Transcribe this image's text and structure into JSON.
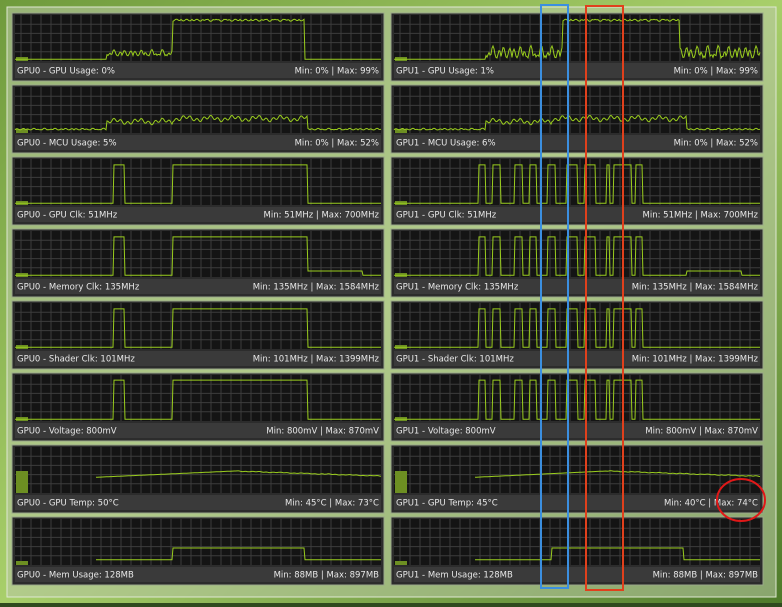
{
  "panels": [
    {
      "label": "GPU0 - GPU Usage: 0%",
      "range": "Min: 0% | Max: 99%"
    },
    {
      "label": "GPU1 - GPU Usage: 1%",
      "range": "Min: 0% | Max: 99%"
    },
    {
      "label": "GPU0 - MCU Usage: 5%",
      "range": "Min: 0% | Max: 52%"
    },
    {
      "label": "GPU1 - MCU Usage: 6%",
      "range": "Min: 0% | Max: 52%"
    },
    {
      "label": "GPU0 - GPU Clk: 51MHz",
      "range": "Min: 51MHz | Max: 700MHz"
    },
    {
      "label": "GPU1 - GPU Clk: 51MHz",
      "range": "Min: 51MHz | Max: 700MHz"
    },
    {
      "label": "GPU0 - Memory Clk: 135MHz",
      "range": "Min: 135MHz | Max: 1584MHz"
    },
    {
      "label": "GPU1 - Memory Clk: 135MHz",
      "range": "Min: 135MHz | Max: 1584MHz"
    },
    {
      "label": "GPU0 - Shader Clk: 101MHz",
      "range": "Min: 101MHz | Max: 1399MHz"
    },
    {
      "label": "GPU1 - Shader Clk: 101MHz",
      "range": "Min: 101MHz | Max: 1399MHz"
    },
    {
      "label": "GPU0 - Voltage: 800mV",
      "range": "Min: 800mV | Max: 870mV"
    },
    {
      "label": "GPU1 - Voltage: 800mV",
      "range": "Min: 800mV | Max: 870mV"
    },
    {
      "label": "GPU0 - GPU Temp: 50°C",
      "range": "Min: 45°C | Max: 73°C"
    },
    {
      "label": "GPU1 - GPU Temp: 45°C",
      "range": "Min: 40°C | Max: 74°C"
    },
    {
      "label": "GPU0 - Mem Usage: 128MB",
      "range": "Min: 88MB | Max: 897MB"
    },
    {
      "label": "GPU1 - Mem Usage: 128MB",
      "range": "Min: 88MB | Max: 897MB"
    }
  ]
}
